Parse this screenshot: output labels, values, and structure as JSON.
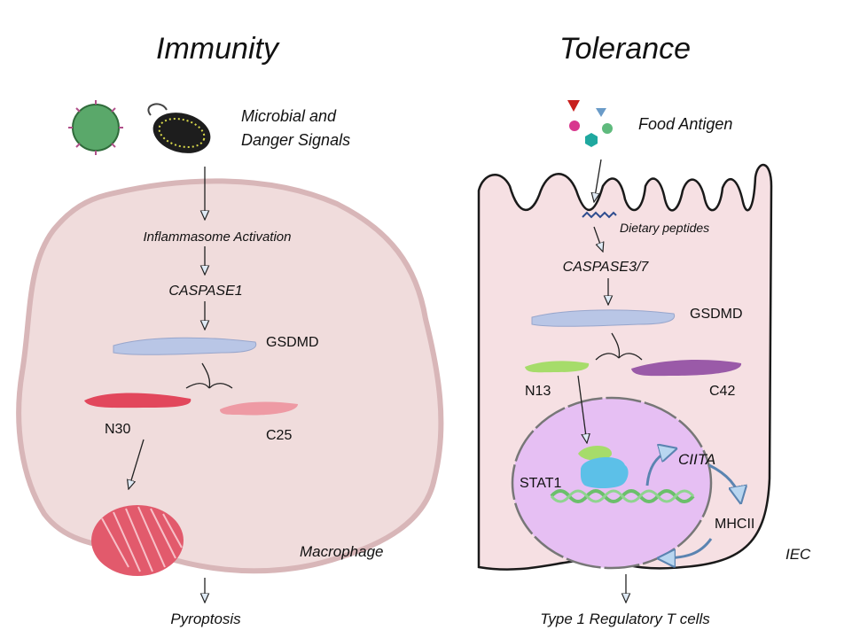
{
  "immunity": {
    "title": "Immunity",
    "signal_line1": "Microbial and",
    "signal_line2": "Danger Signals",
    "step1": "Inflammasome Activation",
    "step2": "CASPASE1",
    "gsdmd": "GSDMD",
    "n_fragment": "N30",
    "c_fragment": "C25",
    "cell": "Macrophage",
    "outcome": "Pyroptosis",
    "icons": [
      "virus-icon",
      "bacterium-icon",
      "pore-icon"
    ]
  },
  "tolerance": {
    "title": "Tolerance",
    "antigen": "Food Antigen",
    "peptides": "Dietary peptides",
    "step1": "CASPASE3/7",
    "gsdmd": "GSDMD",
    "n_fragment": "N13",
    "c_fragment": "C42",
    "stat": "STAT1",
    "ciita": "CIITA",
    "mhc": "MHCII",
    "cell": "IEC",
    "outcome": "Type 1 Regulatory T cells",
    "icons": [
      "antigen-particles-icon",
      "dna-icon",
      "stat1-complex-icon"
    ]
  },
  "colors": {
    "macrophage": "#f0dcdc",
    "iec": "#f6e0e3",
    "nucleus": "#e6bff3",
    "gsdmd": "#b9c6e6",
    "n30": "#e2475c",
    "c25": "#ee9aa4",
    "n13": "#a6dc6a",
    "c42": "#9a5aa8"
  }
}
